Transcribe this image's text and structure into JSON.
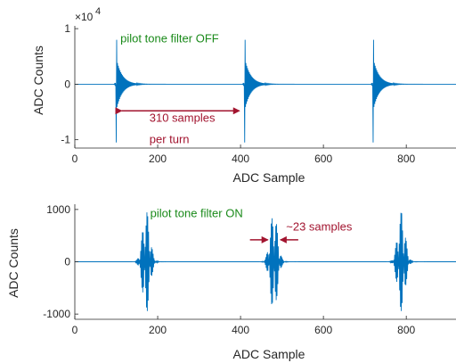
{
  "colors": {
    "signal": "#0072BD",
    "annotation_red": "#A2142F",
    "annotation_green": "#1A8A1A",
    "axis": "#262626"
  },
  "chart_data": [
    {
      "type": "line",
      "series": [
        {
          "name": "",
          "kind": "impulse-train",
          "pulse_centers": [
            100,
            410,
            720
          ],
          "peak_positive": 8000,
          "peak_negative": -10500,
          "decay_samples": 40
        }
      ],
      "xlabel": "ADC Sample",
      "ylabel": "ADC Counts",
      "xlim": [
        0,
        920
      ],
      "ylim": [
        -11500,
        10500
      ],
      "xticks": [
        0,
        200,
        400,
        600,
        800
      ],
      "xtick_labels": [
        "0",
        "200",
        "400",
        "600",
        "800"
      ],
      "yticks": [
        -10000,
        0,
        10000
      ],
      "ytick_labels": [
        "-1",
        "0",
        "1"
      ],
      "y_exponent_label": "×10^4",
      "grid": false,
      "annotations": [
        {
          "text": "pilot tone filter OFF",
          "color": "green",
          "x": 110,
          "y": 7500
        },
        {
          "text": "310 samples",
          "color": "red",
          "x": 180,
          "y": -6800
        },
        {
          "text": "per turn",
          "color": "red",
          "x": 180,
          "y": -10600
        },
        {
          "kind": "double-arrow",
          "from": [
            100,
            -4800
          ],
          "to": [
            410,
            -4800
          ],
          "color": "red"
        }
      ]
    },
    {
      "type": "line",
      "series": [
        {
          "name": "",
          "kind": "wave-packet-train",
          "pulse_centers": [
            172,
            480,
            788
          ],
          "amplitude": 950,
          "packet_width_samples": 23
        }
      ],
      "xlabel": "ADC Sample",
      "ylabel": "ADC Counts",
      "xlim": [
        0,
        920
      ],
      "ylim": [
        -1100,
        1100
      ],
      "xticks": [
        0,
        200,
        400,
        600,
        800
      ],
      "xtick_labels": [
        "0",
        "200",
        "400",
        "600",
        "800"
      ],
      "yticks": [
        -1000,
        0,
        1000
      ],
      "ytick_labels": [
        "-1000",
        "0",
        "1000"
      ],
      "grid": false,
      "annotations": [
        {
          "text": "pilot tone filter ON",
          "color": "green",
          "x": 182,
          "y": 850
        },
        {
          "text": "~23 samples",
          "color": "red",
          "x": 510,
          "y": 600
        },
        {
          "kind": "converging-arrows",
          "left": 470,
          "right": 492,
          "y": 420,
          "color": "red"
        }
      ]
    }
  ]
}
